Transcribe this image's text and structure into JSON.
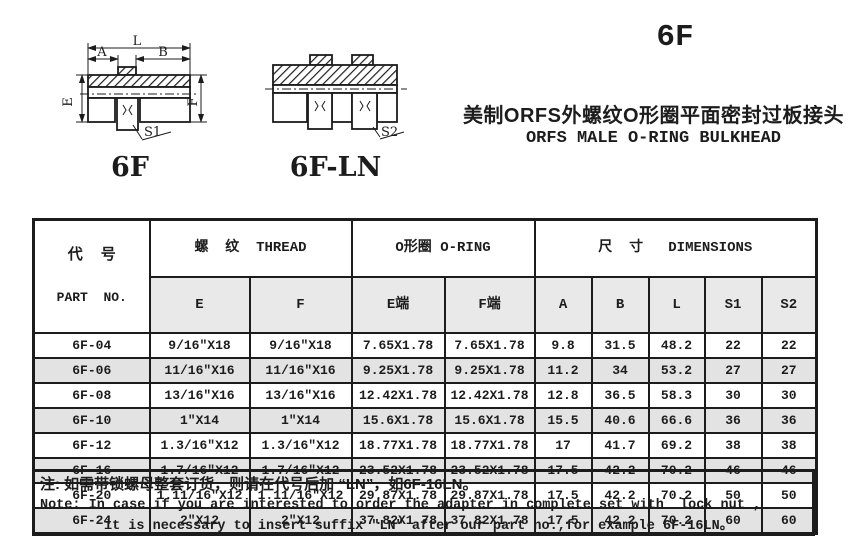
{
  "header": {
    "series_code": "6F",
    "title_cn": "美制ORFS外螺纹O形圈平面密封过板接头",
    "title_en": "ORFS MALE O-RING BULKHEAD"
  },
  "diagrams": {
    "left": {
      "caption": "6F",
      "dim_length": "L",
      "dim_a": "A",
      "dim_b": "B",
      "dim_e": "E",
      "dim_f": "F",
      "wrench_flat": "S1"
    },
    "right": {
      "caption": "6F-LN",
      "wrench_flat": "S2"
    }
  },
  "table": {
    "header": {
      "part_no_cn": "代  号",
      "part_no_en": "PART  NO.",
      "thread_group": "螺  纹  THREAD",
      "oring_group": "O形圈 O-RING",
      "dimensions_group": "尺  寸   DIMENSIONS",
      "sub_columns": [
        "E",
        "F",
        "E端",
        "F端",
        "A",
        "B",
        "L",
        "S1",
        "S2"
      ]
    },
    "rows": [
      {
        "shaded": false,
        "cells": [
          "6F-04",
          "9/16″X18",
          "9/16″X18",
          "7.65X1.78",
          "7.65X1.78",
          "9.8",
          "31.5",
          "48.2",
          "22",
          "22"
        ]
      },
      {
        "shaded": true,
        "cells": [
          "6F-06",
          "11/16″X16",
          "11/16″X16",
          "9.25X1.78",
          "9.25X1.78",
          "11.2",
          "34",
          "53.2",
          "27",
          "27"
        ]
      },
      {
        "shaded": false,
        "cells": [
          "6F-08",
          "13/16″X16",
          "13/16″X16",
          "12.42X1.78",
          "12.42X1.78",
          "12.8",
          "36.5",
          "58.3",
          "30",
          "30"
        ]
      },
      {
        "shaded": true,
        "cells": [
          "6F-10",
          "1″X14",
          "1″X14",
          "15.6X1.78",
          "15.6X1.78",
          "15.5",
          "40.6",
          "66.6",
          "36",
          "36"
        ]
      },
      {
        "shaded": false,
        "cells": [
          "6F-12",
          "1.3/16″X12",
          "1.3/16″X12",
          "18.77X1.78",
          "18.77X1.78",
          "17",
          "41.7",
          "69.2",
          "38",
          "38"
        ]
      },
      {
        "shaded": true,
        "cells": [
          "6F-16",
          "1.7/16″X12",
          "1.7/16″X12",
          "23.52X1.78",
          "23.52X1.78",
          "17.5",
          "42.2",
          "70.2",
          "46",
          "46"
        ]
      },
      {
        "shaded": false,
        "cells": [
          "6F-20",
          "1.11/16″X12",
          "1.11/16″X12",
          "29.87X1.78",
          "29.87X1.78",
          "17.5",
          "42.2",
          "70.2",
          "50",
          "50"
        ]
      },
      {
        "shaded": true,
        "cells": [
          "6F-24",
          "2″X12",
          "2″X12",
          "37.82X1.78",
          "37.82X1.78",
          "17.5",
          "42.2",
          "70.2",
          "60",
          "60"
        ]
      }
    ]
  },
  "note": {
    "line_cn": "注: 如需带锁螺母整套订货，则请在代号后加 “LN”，如6F-16LN。",
    "line_en1": "Note: In case if you are interested to order the adapter in complete set with  lock nut ,",
    "line_en2": "it is necessary to insert suffix ″LN″ after our part no.,for example 6F-16LN。"
  },
  "colors": {
    "ink": "#1c1c1c",
    "row_shade": "#e3e3e3",
    "header_shade": "#e9e9e9",
    "background": "#ffffff"
  }
}
